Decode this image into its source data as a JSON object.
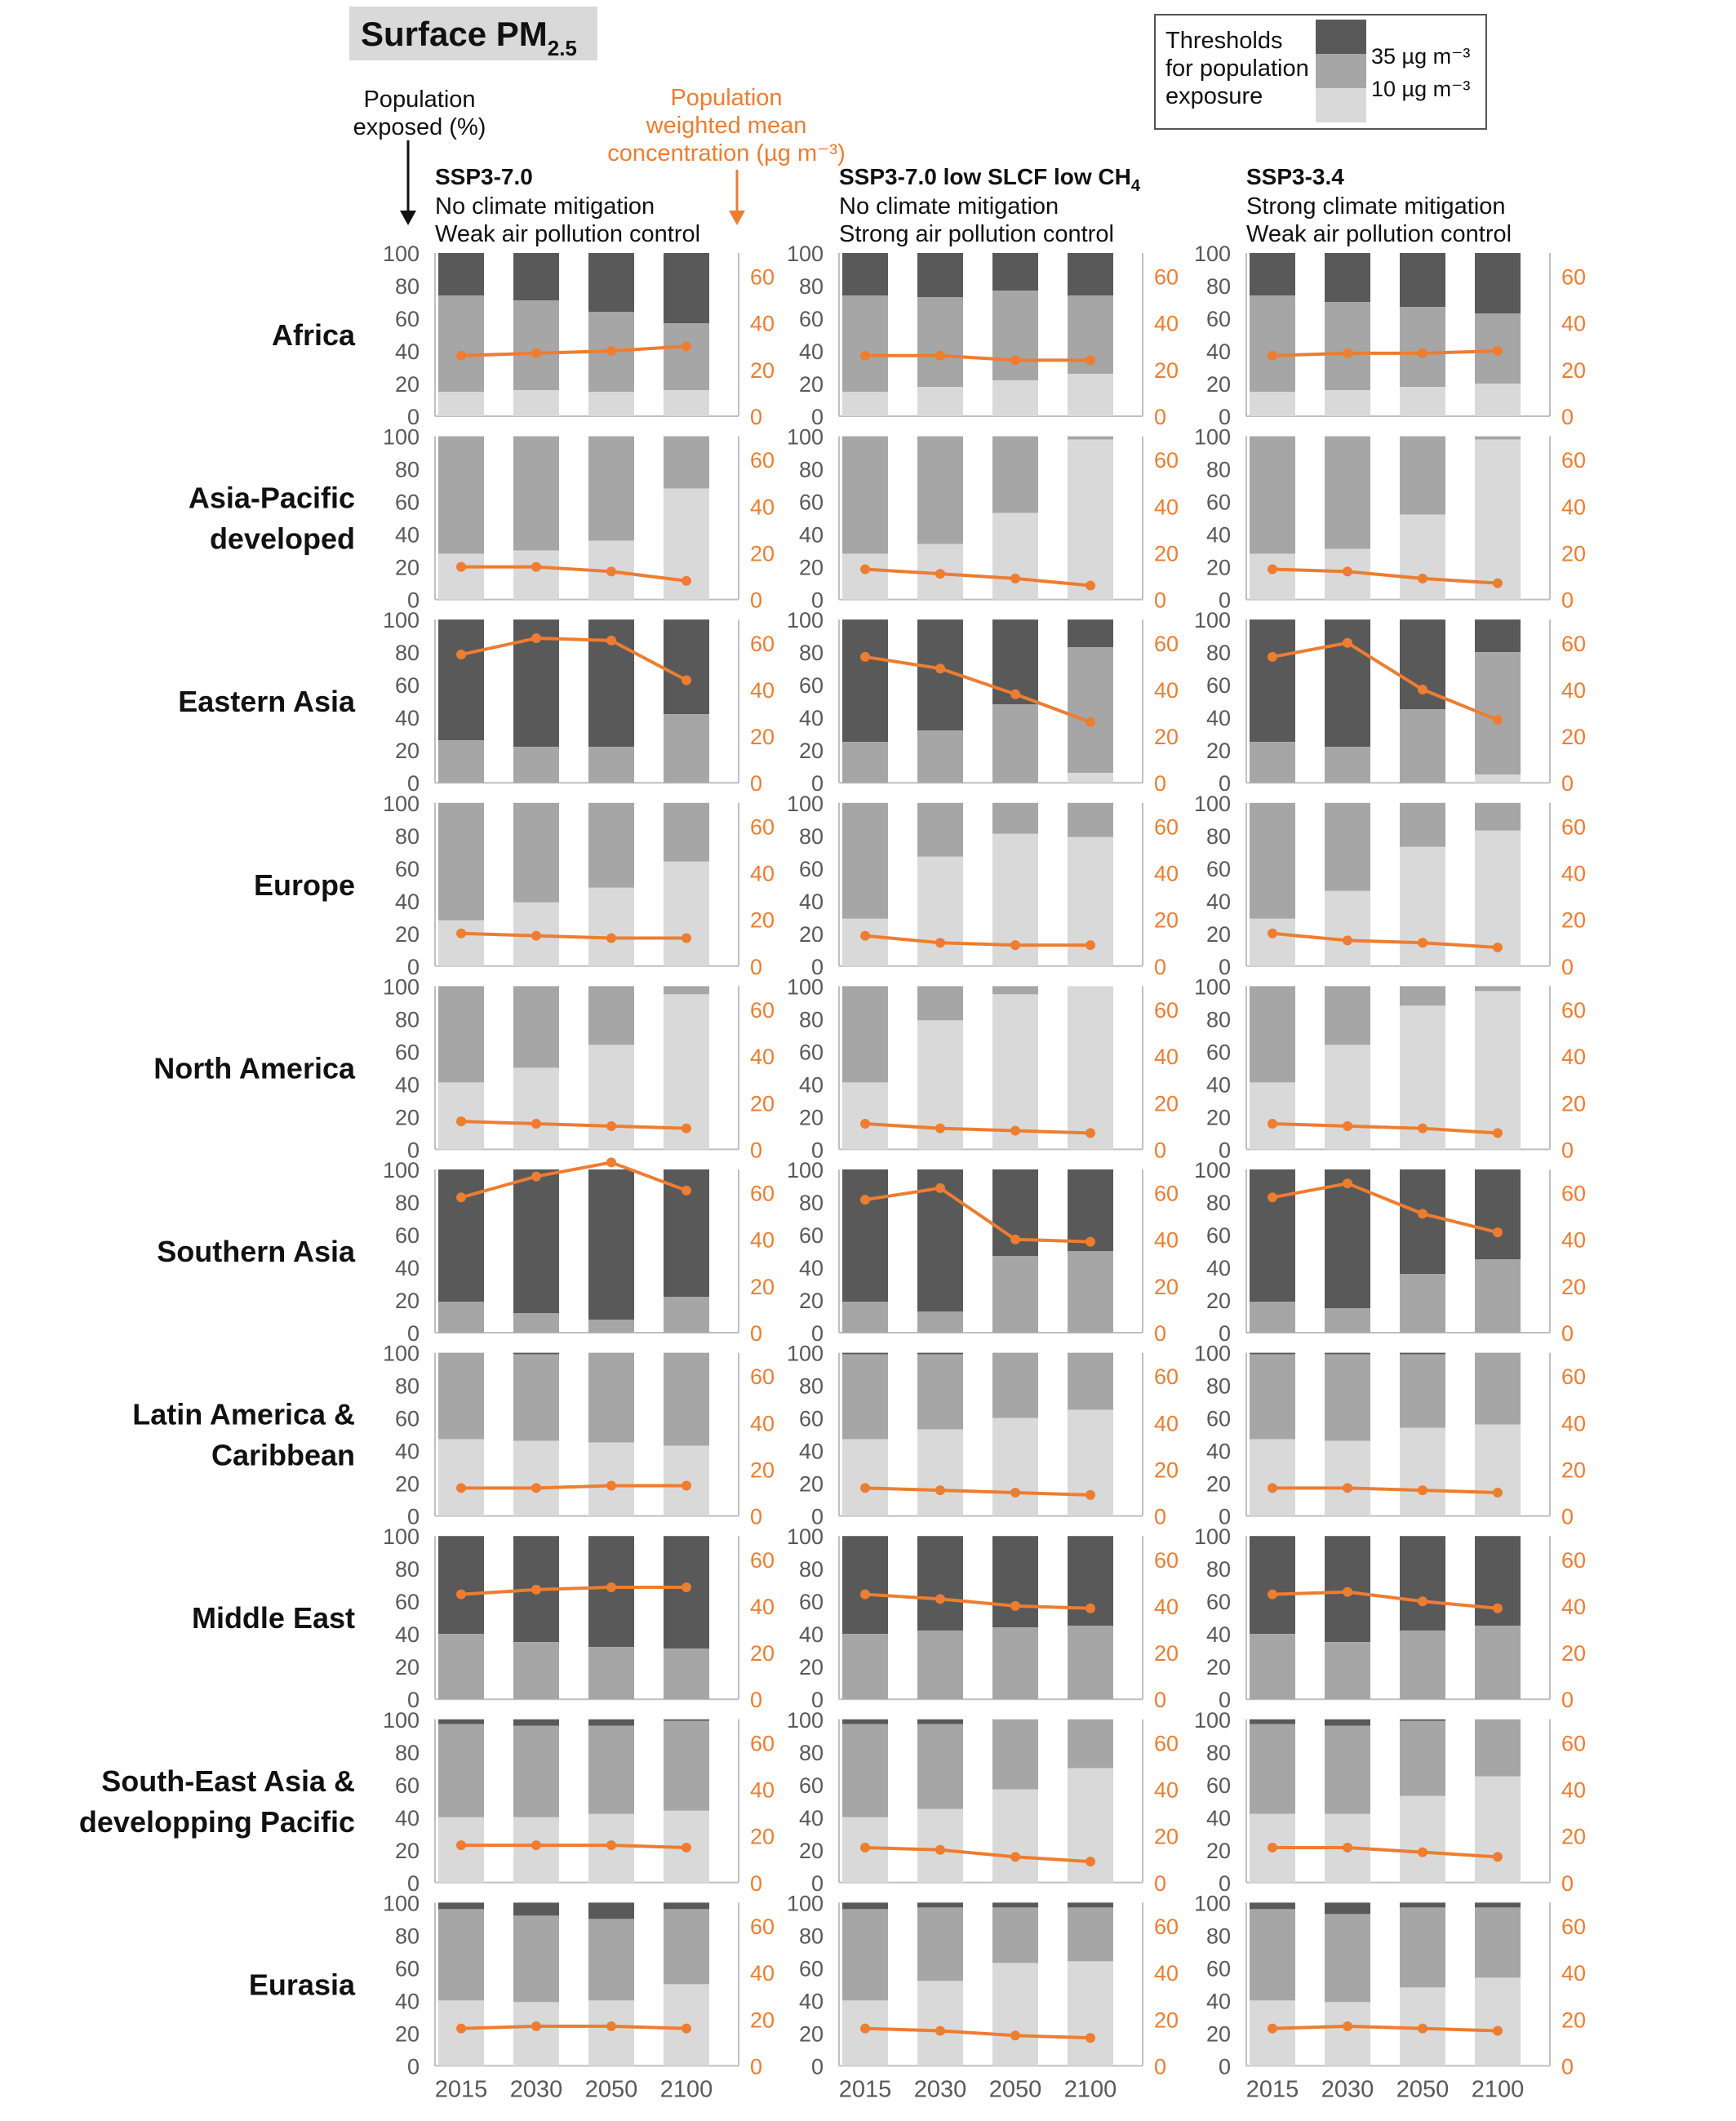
{
  "title": {
    "main": "Surface PM",
    "sub": "2.5"
  },
  "left_axis_label": [
    "Population",
    "exposed (%)"
  ],
  "right_axis_label": [
    "Population",
    "weighted mean",
    "concentration (µg m⁻³)"
  ],
  "legend": {
    "title": [
      "Thresholds",
      "for population",
      "exposure"
    ],
    "items": [
      {
        "label": "35 µg m⁻³",
        "color": "#595959"
      },
      {
        "label": "10 µg m⁻³",
        "color": "#a6a6a6"
      },
      {
        "label": "",
        "color": "#d9d9d9"
      }
    ]
  },
  "scenarios": [
    {
      "name": "SSP3-7.0",
      "line1": "No climate mitigation",
      "line2": "Weak air pollution control"
    },
    {
      "name": "SSP3-7.0 low SLCF low CH",
      "name_sub": "4",
      "line1": "No climate mitigation",
      "line2": "Strong air pollution control"
    },
    {
      "name": "SSP3-3.4",
      "line1": "Strong climate mitigation",
      "line2": "Weak air pollution control"
    }
  ],
  "colors": {
    "above35": "#595959",
    "between": "#a6a6a6",
    "below10": "#d9d9d9",
    "line": "#ed7d31",
    "text": "#333333"
  },
  "chart_data": {
    "type": "bar",
    "description_keys": [
      "regions",
      "categories",
      "panels"
    ],
    "categories": [
      "2015",
      "2030",
      "2050",
      "2100"
    ],
    "left_ticks": [
      "0",
      "20",
      "40",
      "60",
      "80",
      "100"
    ],
    "right_ticks": [
      "0",
      "20",
      "40",
      "60"
    ],
    "left_ylim": [
      0,
      100
    ],
    "right_ylim": [
      0,
      70
    ],
    "series_names": [
      "35 µg m⁻³",
      "10 µg m⁻³",
      "Population weighted mean concentration (µg m⁻³)"
    ],
    "regions": [
      {
        "name": [
          "Africa"
        ],
        "panels": [
          {
            "lt10": [
              15,
              16,
              15,
              16
            ],
            "lt35": [
              74,
              71,
              64,
              57
            ],
            "conc": [
              26,
              27,
              28,
              30
            ]
          },
          {
            "lt10": [
              15,
              18,
              22,
              26
            ],
            "lt35": [
              74,
              73,
              77,
              74
            ],
            "conc": [
              26,
              26,
              24,
              24
            ]
          },
          {
            "lt10": [
              15,
              16,
              18,
              20
            ],
            "lt35": [
              74,
              70,
              67,
              63
            ],
            "conc": [
              26,
              27,
              27,
              28
            ]
          }
        ]
      },
      {
        "name": [
          "Asia-Pacific",
          "developed"
        ],
        "panels": [
          {
            "lt10": [
              28,
              30,
              36,
              68
            ],
            "lt35": [
              100,
              100,
              100,
              100
            ],
            "conc": [
              14,
              14,
              12,
              8
            ]
          },
          {
            "lt10": [
              28,
              34,
              53,
              98
            ],
            "lt35": [
              100,
              100,
              100,
              100
            ],
            "conc": [
              13,
              11,
              9,
              6
            ]
          },
          {
            "lt10": [
              28,
              31,
              52,
              98
            ],
            "lt35": [
              100,
              100,
              100,
              100
            ],
            "conc": [
              13,
              12,
              9,
              7
            ]
          }
        ]
      },
      {
        "name": [
          "Eastern Asia"
        ],
        "panels": [
          {
            "lt10": [
              0,
              0,
              0,
              0
            ],
            "lt35": [
              26,
              22,
              22,
              42
            ],
            "conc": [
              55,
              62,
              61,
              44
            ]
          },
          {
            "lt10": [
              0,
              0,
              0,
              6
            ],
            "lt35": [
              25,
              32,
              48,
              83
            ],
            "conc": [
              54,
              49,
              38,
              26
            ]
          },
          {
            "lt10": [
              0,
              0,
              0,
              5
            ],
            "lt35": [
              25,
              22,
              45,
              80
            ],
            "conc": [
              54,
              60,
              40,
              27
            ]
          }
        ]
      },
      {
        "name": [
          "Europe"
        ],
        "panels": [
          {
            "lt10": [
              28,
              39,
              48,
              64
            ],
            "lt35": [
              100,
              100,
              100,
              100
            ],
            "conc": [
              14,
              13,
              12,
              12
            ]
          },
          {
            "lt10": [
              29,
              67,
              81,
              79
            ],
            "lt35": [
              100,
              100,
              100,
              100
            ],
            "conc": [
              13,
              10,
              9,
              9
            ]
          },
          {
            "lt10": [
              29,
              46,
              73,
              83
            ],
            "lt35": [
              100,
              100,
              100,
              100
            ],
            "conc": [
              14,
              11,
              10,
              8
            ]
          }
        ]
      },
      {
        "name": [
          "North America"
        ],
        "panels": [
          {
            "lt10": [
              41,
              50,
              64,
              95
            ],
            "lt35": [
              100,
              100,
              100,
              100
            ],
            "conc": [
              12,
              11,
              10,
              9
            ]
          },
          {
            "lt10": [
              41,
              79,
              95,
              100
            ],
            "lt35": [
              100,
              100,
              100,
              100
            ],
            "conc": [
              11,
              9,
              8,
              7
            ]
          },
          {
            "lt10": [
              41,
              64,
              88,
              97
            ],
            "lt35": [
              100,
              100,
              100,
              100
            ],
            "conc": [
              11,
              10,
              9,
              7
            ]
          }
        ]
      },
      {
        "name": [
          "Southern Asia"
        ],
        "panels": [
          {
            "lt10": [
              0,
              0,
              0,
              0
            ],
            "lt35": [
              19,
              12,
              8,
              22
            ],
            "conc": [
              58,
              67,
              73,
              61
            ]
          },
          {
            "lt10": [
              0,
              0,
              0,
              0
            ],
            "lt35": [
              19,
              13,
              47,
              50
            ],
            "conc": [
              57,
              62,
              40,
              39
            ]
          },
          {
            "lt10": [
              0,
              0,
              0,
              0
            ],
            "lt35": [
              19,
              15,
              36,
              45
            ],
            "conc": [
              58,
              64,
              51,
              43
            ]
          }
        ]
      },
      {
        "name": [
          "Latin America &",
          "Caribbean"
        ],
        "panels": [
          {
            "lt10": [
              47,
              46,
              45,
              43
            ],
            "lt35": [
              100,
              99,
              100,
              100
            ],
            "conc": [
              12,
              12,
              13,
              13
            ]
          },
          {
            "lt10": [
              47,
              53,
              60,
              65
            ],
            "lt35": [
              99,
              99,
              100,
              100
            ],
            "conc": [
              12,
              11,
              10,
              9
            ]
          },
          {
            "lt10": [
              47,
              46,
              54,
              56
            ],
            "lt35": [
              99,
              99,
              99,
              100
            ],
            "conc": [
              12,
              12,
              11,
              10
            ]
          }
        ]
      },
      {
        "name": [
          "Middle East"
        ],
        "panels": [
          {
            "lt10": [
              0,
              0,
              0,
              0
            ],
            "lt35": [
              40,
              35,
              32,
              31
            ],
            "conc": [
              45,
              47,
              48,
              48
            ]
          },
          {
            "lt10": [
              0,
              0,
              0,
              0
            ],
            "lt35": [
              40,
              42,
              44,
              45
            ],
            "conc": [
              45,
              43,
              40,
              39
            ]
          },
          {
            "lt10": [
              0,
              0,
              0,
              0
            ],
            "lt35": [
              40,
              35,
              42,
              45
            ],
            "conc": [
              45,
              46,
              42,
              39
            ]
          }
        ]
      },
      {
        "name": [
          "South-East Asia &",
          "developping Pacific"
        ],
        "panels": [
          {
            "lt10": [
              40,
              40,
              42,
              44
            ],
            "lt35": [
              97,
              96,
              96,
              99
            ],
            "conc": [
              16,
              16,
              16,
              15
            ]
          },
          {
            "lt10": [
              40,
              45,
              57,
              70
            ],
            "lt35": [
              97,
              97,
              100,
              100
            ],
            "conc": [
              15,
              14,
              11,
              9
            ]
          },
          {
            "lt10": [
              42,
              42,
              53,
              65
            ],
            "lt35": [
              97,
              96,
              99,
              100
            ],
            "conc": [
              15,
              15,
              13,
              11
            ]
          }
        ]
      },
      {
        "name": [
          "Eurasia"
        ],
        "panels": [
          {
            "lt10": [
              40,
              39,
              40,
              50
            ],
            "lt35": [
              96,
              92,
              90,
              96
            ],
            "conc": [
              16,
              17,
              17,
              16
            ]
          },
          {
            "lt10": [
              40,
              52,
              63,
              64
            ],
            "lt35": [
              96,
              97,
              97,
              97
            ],
            "conc": [
              16,
              15,
              13,
              12
            ]
          },
          {
            "lt10": [
              40,
              39,
              48,
              54
            ],
            "lt35": [
              96,
              93,
              97,
              97
            ],
            "conc": [
              16,
              17,
              16,
              15
            ]
          }
        ]
      }
    ]
  }
}
